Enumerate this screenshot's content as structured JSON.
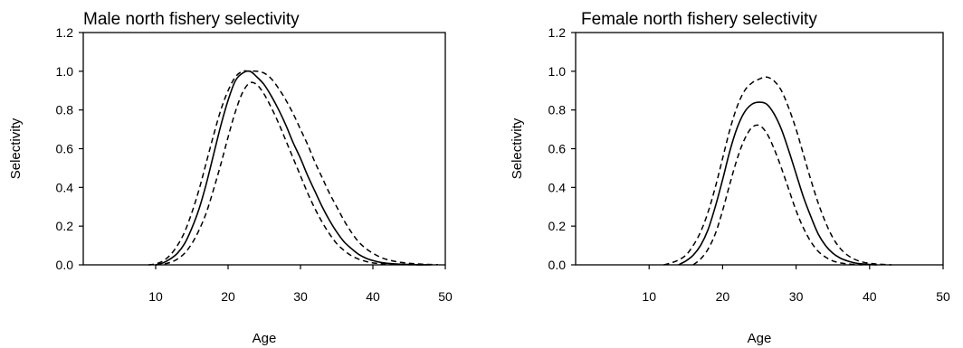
{
  "chart_data": [
    {
      "type": "line",
      "title": "Male north fishery selectivity",
      "xlabel": "Age",
      "ylabel": "Selectivity",
      "xlim": [
        0,
        50
      ],
      "ylim": [
        0,
        1.2
      ],
      "xticks": [
        10,
        20,
        30,
        40,
        50
      ],
      "xtick_labels": [
        "10",
        "20",
        "30",
        "40",
        "50"
      ],
      "yticks": [
        0,
        0.2,
        0.4,
        0.6,
        0.8,
        1.0,
        1.2
      ],
      "ytick_labels": [
        "0.0",
        "0.2",
        "0.4",
        "0.6",
        "0.8",
        "1.0",
        "1.2"
      ],
      "grid": false,
      "legend": "none",
      "series": [
        {
          "style": "dashed",
          "x": [
            9,
            10,
            11,
            12,
            13,
            14,
            15,
            16,
            17,
            18,
            19,
            20,
            21,
            22,
            23,
            24,
            25,
            26,
            27,
            28,
            29,
            30,
            31,
            32,
            33,
            34,
            35,
            36,
            37,
            38,
            39,
            40,
            41,
            42,
            43,
            44,
            45,
            46,
            47,
            48,
            49
          ],
          "y": [
            0.0,
            0.005,
            0.02,
            0.05,
            0.1,
            0.17,
            0.27,
            0.39,
            0.53,
            0.67,
            0.8,
            0.9,
            0.97,
            1.0,
            1.0,
            1.0,
            0.99,
            0.96,
            0.91,
            0.85,
            0.78,
            0.7,
            0.62,
            0.53,
            0.45,
            0.37,
            0.3,
            0.23,
            0.17,
            0.12,
            0.085,
            0.06,
            0.04,
            0.027,
            0.018,
            0.012,
            0.008,
            0.005,
            0.003,
            0.002,
            0.001
          ]
        },
        {
          "style": "solid",
          "x": [
            10,
            11,
            12,
            13,
            14,
            15,
            16,
            17,
            18,
            19,
            20,
            21,
            22,
            23,
            24,
            25,
            26,
            27,
            28,
            29,
            30,
            31,
            32,
            33,
            34,
            35,
            36,
            37,
            38,
            39,
            40,
            41,
            42,
            43,
            44,
            45,
            46,
            47,
            48
          ],
          "y": [
            0.0,
            0.01,
            0.03,
            0.06,
            0.11,
            0.19,
            0.29,
            0.42,
            0.57,
            0.72,
            0.85,
            0.95,
            0.99,
            1.0,
            0.97,
            0.93,
            0.87,
            0.8,
            0.72,
            0.63,
            0.55,
            0.46,
            0.38,
            0.3,
            0.23,
            0.17,
            0.12,
            0.085,
            0.055,
            0.035,
            0.022,
            0.013,
            0.008,
            0.005,
            0.003,
            0.002,
            0.001,
            0.0005,
            0.0
          ]
        },
        {
          "style": "dashed",
          "x": [
            10,
            11,
            12,
            13,
            14,
            15,
            16,
            17,
            18,
            19,
            20,
            21,
            22,
            23,
            24,
            25,
            26,
            27,
            28,
            29,
            30,
            31,
            32,
            33,
            34,
            35,
            36,
            37,
            38,
            39,
            40,
            41,
            42,
            43,
            44,
            45,
            46,
            47
          ],
          "y": [
            0.0,
            0.004,
            0.012,
            0.03,
            0.06,
            0.11,
            0.18,
            0.27,
            0.39,
            0.52,
            0.66,
            0.79,
            0.89,
            0.94,
            0.93,
            0.88,
            0.81,
            0.73,
            0.64,
            0.55,
            0.46,
            0.37,
            0.29,
            0.22,
            0.16,
            0.11,
            0.075,
            0.048,
            0.03,
            0.018,
            0.01,
            0.006,
            0.003,
            0.002,
            0.001,
            0.0005,
            0.0002,
            0.0
          ]
        }
      ]
    },
    {
      "type": "line",
      "title": "Female north fishery selectivity",
      "xlabel": "Age",
      "ylabel": "Selectivity",
      "xlim": [
        0,
        50
      ],
      "ylim": [
        0,
        1.2
      ],
      "xticks": [
        10,
        20,
        30,
        40,
        50
      ],
      "xtick_labels": [
        "10",
        "20",
        "30",
        "40",
        "50"
      ],
      "yticks": [
        0,
        0.2,
        0.4,
        0.6,
        0.8,
        1.0,
        1.2
      ],
      "ytick_labels": [
        "0.0",
        "0.2",
        "0.4",
        "0.6",
        "0.8",
        "1.0",
        "1.2"
      ],
      "grid": false,
      "legend": "none",
      "series": [
        {
          "style": "dashed",
          "x": [
            12,
            13,
            14,
            15,
            16,
            17,
            18,
            19,
            20,
            21,
            22,
            23,
            24,
            25,
            26,
            27,
            28,
            29,
            30,
            31,
            32,
            33,
            34,
            35,
            36,
            37,
            38,
            39,
            40,
            41,
            42,
            43
          ],
          "y": [
            0.0,
            0.01,
            0.025,
            0.05,
            0.1,
            0.17,
            0.27,
            0.4,
            0.55,
            0.7,
            0.82,
            0.9,
            0.94,
            0.96,
            0.97,
            0.95,
            0.9,
            0.81,
            0.7,
            0.57,
            0.44,
            0.32,
            0.22,
            0.14,
            0.085,
            0.05,
            0.028,
            0.015,
            0.008,
            0.004,
            0.002,
            0.0
          ]
        },
        {
          "style": "solid",
          "x": [
            14,
            15,
            16,
            17,
            18,
            19,
            20,
            21,
            22,
            23,
            24,
            25,
            26,
            27,
            28,
            29,
            30,
            31,
            32,
            33,
            34,
            35,
            36,
            37,
            38,
            39,
            40,
            41
          ],
          "y": [
            0.0,
            0.02,
            0.05,
            0.1,
            0.18,
            0.3,
            0.44,
            0.59,
            0.71,
            0.79,
            0.83,
            0.84,
            0.83,
            0.78,
            0.7,
            0.59,
            0.47,
            0.35,
            0.25,
            0.16,
            0.1,
            0.06,
            0.035,
            0.02,
            0.01,
            0.005,
            0.002,
            0.0
          ]
        },
        {
          "style": "dashed",
          "x": [
            16,
            17,
            18,
            19,
            20,
            21,
            22,
            23,
            24,
            25,
            26,
            27,
            28,
            29,
            30,
            31,
            32,
            33,
            34,
            35,
            36,
            37,
            38,
            39
          ],
          "y": [
            0.0,
            0.03,
            0.08,
            0.16,
            0.28,
            0.42,
            0.55,
            0.65,
            0.71,
            0.72,
            0.68,
            0.6,
            0.5,
            0.39,
            0.28,
            0.19,
            0.12,
            0.07,
            0.04,
            0.02,
            0.01,
            0.005,
            0.002,
            0.0
          ]
        }
      ]
    }
  ]
}
